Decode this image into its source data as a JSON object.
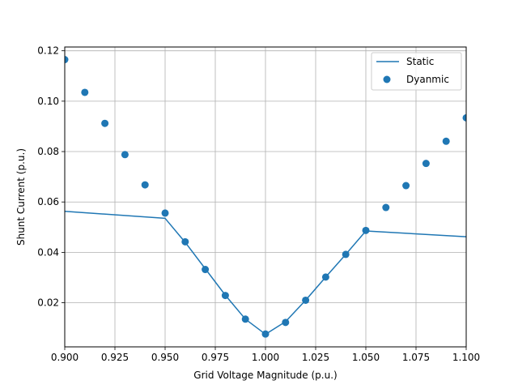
{
  "chart_data": {
    "type": "line+scatter",
    "xlabel": "Grid Voltage Magnitude (p.u.)",
    "ylabel": "Shunt Current (p.u.)",
    "xlim": [
      0.9,
      1.1
    ],
    "ylim": [
      0.0025,
      0.1215
    ],
    "xticks": [
      "0.900",
      "0.925",
      "0.950",
      "0.975",
      "1.000",
      "1.025",
      "1.050",
      "1.075",
      "1.100"
    ],
    "yticks": [
      "0.02",
      "0.04",
      "0.06",
      "0.08",
      "0.10",
      "0.12"
    ],
    "grid": true,
    "legend_position": "top-right",
    "colors": {
      "series": "#1f77b4",
      "grid": "#b0b0b0"
    },
    "series": [
      {
        "name": "Static",
        "kind": "line",
        "x": [
          0.9,
          0.95,
          0.96,
          0.97,
          0.98,
          0.99,
          1.0,
          1.01,
          1.02,
          1.03,
          1.04,
          1.05,
          1.1
        ],
        "y": [
          0.0563,
          0.0535,
          0.044,
          0.0335,
          0.023,
          0.0135,
          0.0075,
          0.0125,
          0.021,
          0.0302,
          0.0392,
          0.0485,
          0.0462
        ]
      },
      {
        "name": "Dyanmic",
        "kind": "scatter",
        "x": [
          0.9,
          0.91,
          0.92,
          0.93,
          0.94,
          0.95,
          0.96,
          0.97,
          0.98,
          0.99,
          1.0,
          1.01,
          1.02,
          1.03,
          1.04,
          1.05,
          1.06,
          1.07,
          1.08,
          1.09,
          1.1
        ],
        "y": [
          0.1165,
          0.1035,
          0.0912,
          0.0788,
          0.0668,
          0.0556,
          0.0442,
          0.0332,
          0.0229,
          0.0135,
          0.0076,
          0.0122,
          0.021,
          0.0302,
          0.0392,
          0.0487,
          0.0578,
          0.0665,
          0.0753,
          0.0841,
          0.0934
        ]
      }
    ]
  }
}
